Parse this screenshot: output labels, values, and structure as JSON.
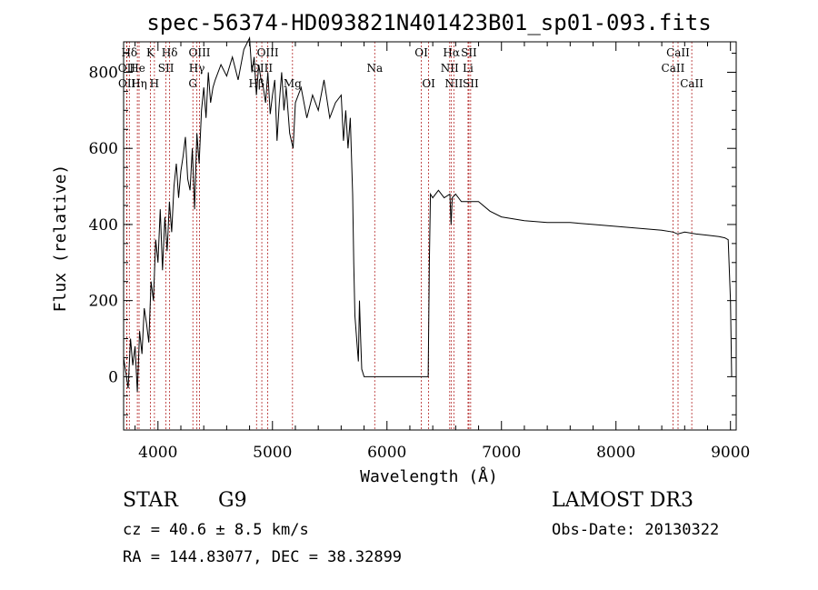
{
  "chart_data": {
    "type": "line",
    "title": "spec-56374-HD093821N401423B01_sp01-093.fits",
    "xlabel": "Wavelength (Å)",
    "ylabel": "Flux (relative)",
    "xlim": [
      3700,
      9050
    ],
    "ylim": [
      -140,
      880
    ],
    "x_ticks": [
      4000,
      5000,
      6000,
      7000,
      8000,
      9000
    ],
    "y_ticks": [
      0,
      200,
      400,
      600,
      800
    ],
    "grid": false,
    "series": [
      {
        "color": "#000000",
        "x": [
          3700,
          3720,
          3740,
          3760,
          3780,
          3800,
          3820,
          3840,
          3860,
          3880,
          3900,
          3920,
          3940,
          3960,
          3980,
          4000,
          4020,
          4040,
          4060,
          4080,
          4100,
          4120,
          4140,
          4160,
          4180,
          4200,
          4220,
          4240,
          4260,
          4280,
          4300,
          4320,
          4340,
          4360,
          4380,
          4400,
          4420,
          4440,
          4460,
          4480,
          4500,
          4550,
          4600,
          4650,
          4700,
          4750,
          4800,
          4820,
          4840,
          4860,
          4880,
          4900,
          4920,
          4940,
          4960,
          4980,
          5000,
          5020,
          5040,
          5060,
          5080,
          5100,
          5120,
          5150,
          5180,
          5200,
          5250,
          5300,
          5350,
          5400,
          5450,
          5500,
          5550,
          5600,
          5620,
          5640,
          5660,
          5680,
          5700,
          5710,
          5720,
          5740,
          5750,
          5760,
          5770,
          5780,
          5800,
          6000,
          6200,
          6360,
          6370,
          6380,
          6400,
          6450,
          6500,
          6550,
          6560,
          6570,
          6600,
          6650,
          6700,
          6800,
          6900,
          7000,
          7200,
          7400,
          7600,
          7800,
          8000,
          8200,
          8400,
          8500,
          8540,
          8600,
          8700,
          8800,
          8900,
          8950,
          8980,
          9000,
          9010
        ],
        "y": [
          50,
          10,
          -30,
          100,
          30,
          80,
          -40,
          120,
          60,
          180,
          140,
          90,
          250,
          200,
          360,
          300,
          440,
          280,
          420,
          330,
          460,
          380,
          500,
          560,
          470,
          540,
          580,
          630,
          520,
          490,
          600,
          440,
          640,
          560,
          700,
          760,
          680,
          800,
          720,
          760,
          780,
          820,
          790,
          840,
          780,
          860,
          890,
          800,
          840,
          740,
          820,
          780,
          760,
          720,
          800,
          690,
          740,
          780,
          620,
          720,
          800,
          700,
          760,
          640,
          600,
          720,
          760,
          680,
          740,
          700,
          780,
          680,
          720,
          740,
          620,
          700,
          600,
          680,
          480,
          300,
          160,
          80,
          40,
          200,
          100,
          20,
          0,
          0,
          0,
          0,
          300,
          480,
          470,
          490,
          470,
          480,
          400,
          470,
          480,
          460,
          460,
          460,
          435,
          420,
          410,
          405,
          405,
          400,
          395,
          390,
          385,
          380,
          375,
          380,
          375,
          372,
          368,
          365,
          360,
          200,
          0
        ]
      }
    ],
    "line_annotations": [
      {
        "label": "Hδ",
        "x": 3750,
        "row": 1
      },
      {
        "label": "OII",
        "x": 3727,
        "row": 2
      },
      {
        "label": "OII",
        "x": 3729,
        "row": 3
      },
      {
        "label": "He",
        "x": 3820,
        "row": 2
      },
      {
        "label": "Hη",
        "x": 3835,
        "row": 3
      },
      {
        "label": "K",
        "x": 3934,
        "row": 1
      },
      {
        "label": "H",
        "x": 3969,
        "row": 3
      },
      {
        "label": "SII",
        "x": 4070,
        "row": 2
      },
      {
        "label": "Hδ",
        "x": 4102,
        "row": 1
      },
      {
        "label": "OIII",
        "x": 4363,
        "row": 1
      },
      {
        "label": "Hγ",
        "x": 4340,
        "row": 2
      },
      {
        "label": "G",
        "x": 4305,
        "row": 3
      },
      {
        "label": "OIII",
        "x": 4959,
        "row": 1
      },
      {
        "label": "OIII",
        "x": 4907,
        "row": 2
      },
      {
        "label": "Hβ",
        "x": 4861,
        "row": 3
      },
      {
        "label": "Mg",
        "x": 5175,
        "row": 3
      },
      {
        "label": "Na",
        "x": 5893,
        "row": 2
      },
      {
        "label": "OI",
        "x": 6300,
        "row": 1
      },
      {
        "label": "OI",
        "x": 6364,
        "row": 3
      },
      {
        "label": "Hα",
        "x": 6563,
        "row": 1
      },
      {
        "label": "SII",
        "x": 6716,
        "row": 1
      },
      {
        "label": "NII",
        "x": 6548,
        "row": 2
      },
      {
        "label": "Li",
        "x": 6708,
        "row": 2
      },
      {
        "label": "NII",
        "x": 6584,
        "row": 3
      },
      {
        "label": "SII",
        "x": 6731,
        "row": 3
      },
      {
        "label": "CaII",
        "x": 8542,
        "row": 1
      },
      {
        "label": "CaII",
        "x": 8498,
        "row": 2
      },
      {
        "label": "CaII",
        "x": 8662,
        "row": 3
      }
    ]
  },
  "info": {
    "object_class": "STAR",
    "subclass": "G9",
    "survey": "LAMOST DR3",
    "cz": "cz = 40.6 ± 8.5 km/s",
    "obs_date": "Obs-Date: 20130322",
    "coords": "RA = 144.83077, DEC =  38.32899"
  }
}
